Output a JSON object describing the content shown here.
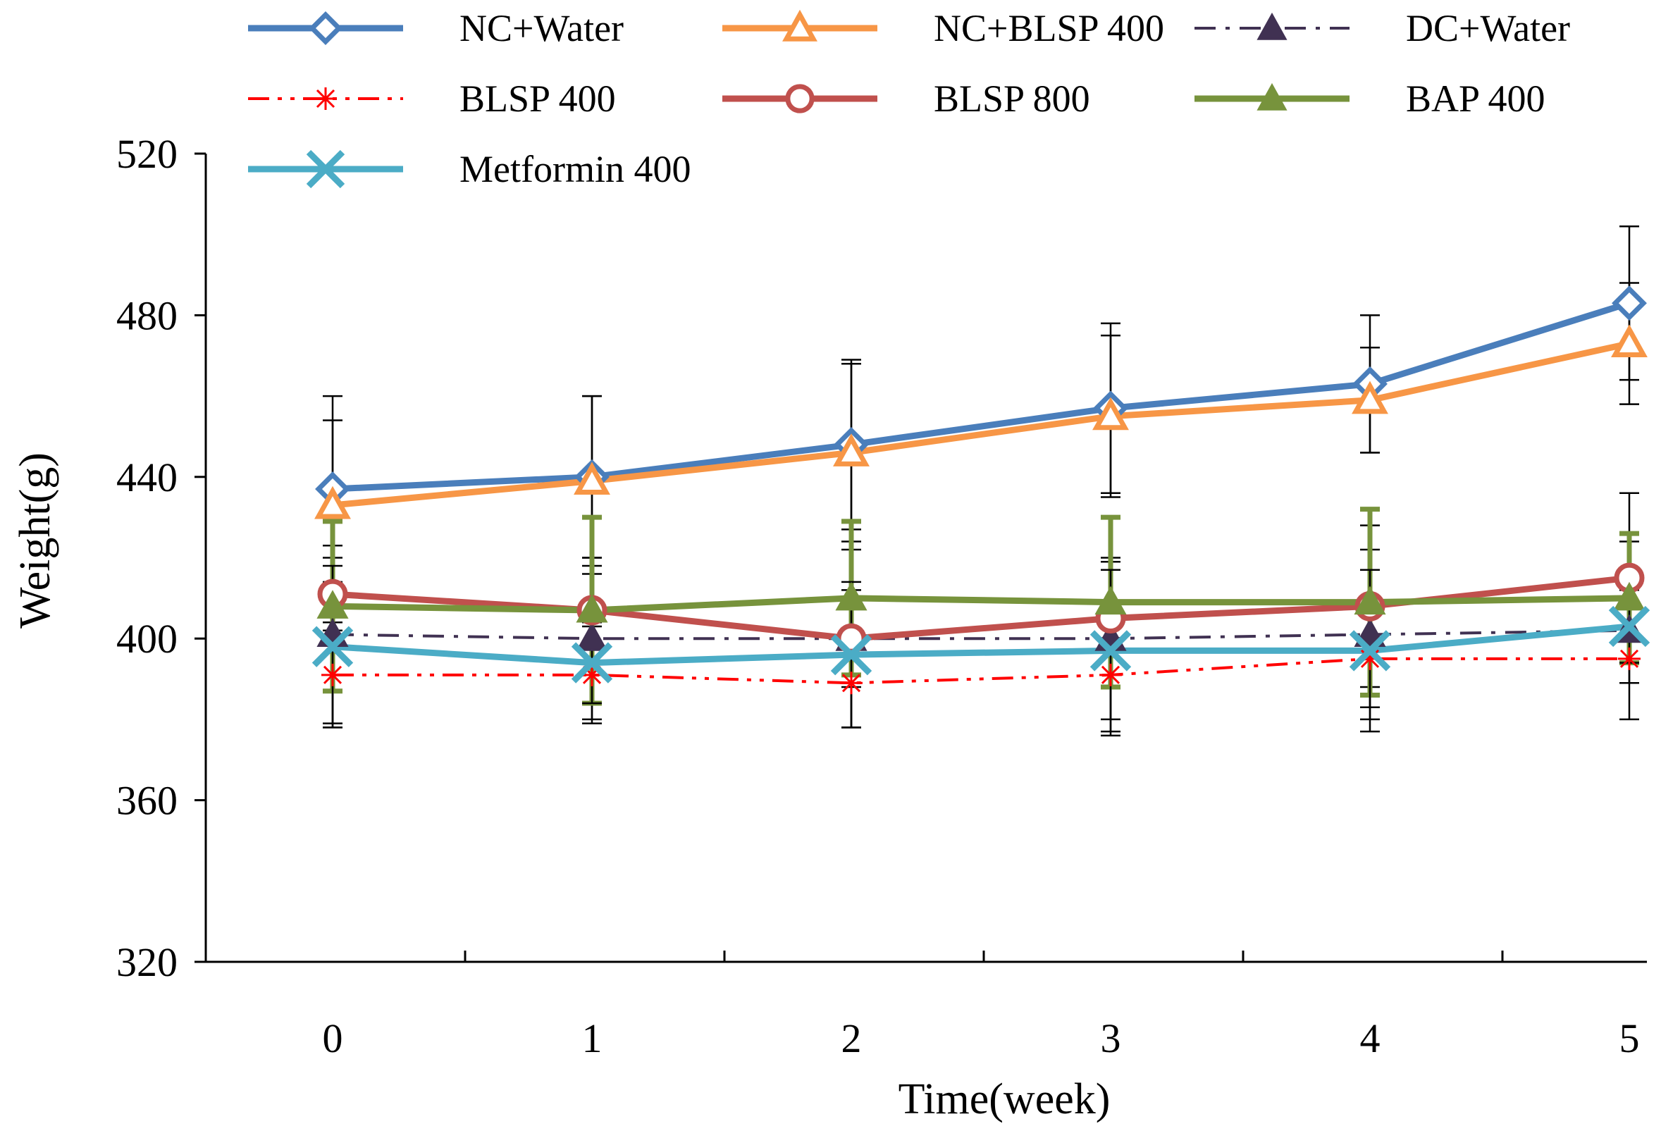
{
  "chart_data": {
    "type": "line",
    "title": "",
    "xlabel": "Time(week)",
    "ylabel": "Weight(g)",
    "x": [
      0,
      1,
      2,
      3,
      4,
      5
    ],
    "x_tick_labels": [
      "0",
      "1",
      "2",
      "3",
      "4",
      "5"
    ],
    "ylim": [
      320,
      520
    ],
    "y_ticks": [
      320,
      360,
      400,
      440,
      480,
      520
    ],
    "y_tick_labels": [
      "320",
      "360",
      "400",
      "440",
      "480",
      "520"
    ],
    "grid": false,
    "legend_position": "top",
    "series": [
      {
        "name": "NC+Water",
        "color": "#4a7ebb",
        "dash": "solid",
        "marker": "diamond-open",
        "values": [
          437,
          440,
          448,
          457,
          463,
          483
        ],
        "errors": [
          23,
          20,
          21,
          21,
          17,
          19
        ]
      },
      {
        "name": "NC+BLSP 400",
        "color": "#f79646",
        "dash": "solid",
        "marker": "triangle-open",
        "values": [
          433,
          439,
          446,
          455,
          459,
          473
        ],
        "errors": [
          21,
          21,
          22,
          20,
          13,
          15
        ]
      },
      {
        "name": "DC+Water",
        "color": "#403152",
        "dash": "dashdot",
        "marker": "triangle-filled",
        "values": [
          401,
          400,
          400,
          400,
          401,
          402
        ],
        "errors": [
          22,
          20,
          22,
          20,
          21,
          22
        ]
      },
      {
        "name": "BLSP 400",
        "color": "#ff0000",
        "dash": "dashdotdot",
        "marker": "asterisk",
        "values": [
          391,
          391,
          389,
          391,
          395,
          395
        ],
        "errors": [
          13,
          12,
          11,
          15,
          12,
          6
        ]
      },
      {
        "name": "BLSP 800",
        "color": "#c0504d",
        "dash": "solid",
        "marker": "circle-open",
        "values": [
          411,
          407,
          400,
          405,
          408,
          415
        ],
        "errors": [
          9,
          9,
          12,
          14,
          20,
          21
        ]
      },
      {
        "name": "BAP 400",
        "color": "#77933c",
        "dash": "solid",
        "marker": "triangle-filled",
        "values": [
          408,
          407,
          410,
          409,
          409,
          410
        ],
        "errors": [
          21,
          23,
          19,
          21,
          23,
          16
        ]
      },
      {
        "name": "Metformin 400",
        "color": "#4bacc6",
        "dash": "solid",
        "marker": "x",
        "values": [
          398,
          394,
          396,
          397,
          397,
          403
        ],
        "errors": [
          20,
          10,
          18,
          20,
          20,
          9
        ]
      }
    ]
  }
}
